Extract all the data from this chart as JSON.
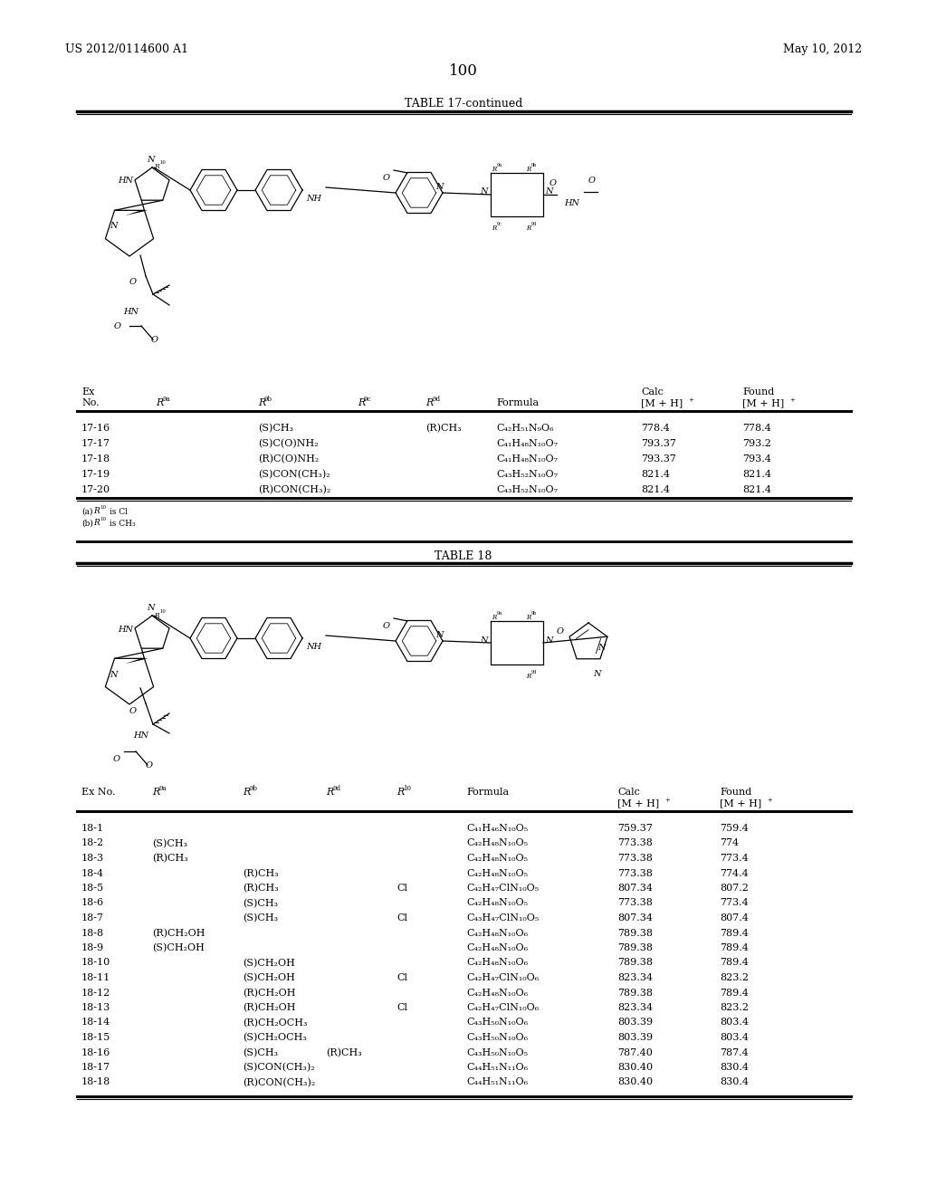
{
  "page_number": "100",
  "patent_number": "US 2012/0114600 A1",
  "patent_date": "May 10, 2012",
  "table17_title": "TABLE 17-continued",
  "table18_title": "TABLE 18",
  "table17_rows": [
    [
      "17-16",
      "",
      "(S)CH₃",
      "",
      "(R)CH₃",
      "C₄₂H₅₁N₉O₆",
      "778.4",
      "778.4"
    ],
    [
      "17-17",
      "",
      "(S)C(O)NH₂",
      "",
      "",
      "C₄₁H₄₈N₁₀O₇",
      "793.37",
      "793.2"
    ],
    [
      "17-18",
      "",
      "(R)C(O)NH₂",
      "",
      "",
      "C₄₁H₄₈N₁₀O₇",
      "793.37",
      "793.4"
    ],
    [
      "17-19",
      "",
      "(S)CON(CH₃)₂",
      "",
      "",
      "C₄₃H₅₂N₁₀O₇",
      "821.4",
      "821.4"
    ],
    [
      "17-20",
      "",
      "(R)CON(CH₃)₂",
      "",
      "",
      "C₄₃H₅₂N₁₀O₇",
      "821.4",
      "821.4"
    ]
  ],
  "table18_rows": [
    [
      "18-1",
      "",
      "",
      "",
      "",
      "C₄₁H₄₆N₁₀O₅",
      "759.37",
      "759.4"
    ],
    [
      "18-2",
      "(S)CH₃",
      "",
      "",
      "",
      "C₄₂H₄₈N₁₀O₅",
      "773.38",
      "774"
    ],
    [
      "18-3",
      "(R)CH₃",
      "",
      "",
      "",
      "C₄₂H₄₈N₁₀O₅",
      "773.38",
      "773.4"
    ],
    [
      "18-4",
      "",
      "(R)CH₃",
      "",
      "",
      "C₄₂H₄₈N₁₀O₅",
      "773.38",
      "774.4"
    ],
    [
      "18-5",
      "",
      "(R)CH₃",
      "",
      "Cl",
      "C₄₂H₄₇ClN₁₀O₅",
      "807.34",
      "807.2"
    ],
    [
      "18-6",
      "",
      "(S)CH₃",
      "",
      "",
      "C₄₂H₄₈N₁₀O₅",
      "773.38",
      "773.4"
    ],
    [
      "18-7",
      "",
      "(S)CH₃",
      "",
      "Cl",
      "C₄₃H₄₇ClN₁₀O₅",
      "807.34",
      "807.4"
    ],
    [
      "18-8",
      "(R)CH₂OH",
      "",
      "",
      "",
      "C₄₂H₄₈N₁₀O₆",
      "789.38",
      "789.4"
    ],
    [
      "18-9",
      "(S)CH₂OH",
      "",
      "",
      "",
      "C₄₂H₄₈N₁₀O₆",
      "789.38",
      "789.4"
    ],
    [
      "18-10",
      "",
      "(S)CH₂OH",
      "",
      "",
      "C₄₂H₄₈N₁₀O₆",
      "789.38",
      "789.4"
    ],
    [
      "18-11",
      "",
      "(S)CH₂OH",
      "",
      "Cl",
      "C₄₂H₄₇ClN₁₀O₆",
      "823.34",
      "823.2"
    ],
    [
      "18-12",
      "",
      "(R)CH₂OH",
      "",
      "",
      "C₄₂H₄₈N₁₀O₆",
      "789.38",
      "789.4"
    ],
    [
      "18-13",
      "",
      "(R)CH₂OH",
      "",
      "Cl",
      "C₄₂H₄₇ClN₁₀O₆",
      "823.34",
      "823.2"
    ],
    [
      "18-14",
      "",
      "(R)CH₂OCH₃",
      "",
      "",
      "C₄₃H₅₀N₁₀O₆",
      "803.39",
      "803.4"
    ],
    [
      "18-15",
      "",
      "(S)CH₂OCH₃",
      "",
      "",
      "C₄₃H₅₀N₁₀O₆",
      "803.39",
      "803.4"
    ],
    [
      "18-16",
      "",
      "(S)CH₃",
      "(R)CH₃",
      "",
      "C₄₃H₅₀N₁₀O₅",
      "787.40",
      "787.4"
    ],
    [
      "18-17",
      "",
      "(S)CON(CH₃)₂",
      "",
      "",
      "C₄₄H₅₁N₁₁O₆",
      "830.40",
      "830.4"
    ],
    [
      "18-18",
      "",
      "(R)CON(CH₃)₂",
      "",
      "",
      "C₄₄H₅₁N₁₁O₆",
      "830.40",
      "830.4"
    ]
  ],
  "background_color": "#ffffff",
  "text_color": "#000000"
}
